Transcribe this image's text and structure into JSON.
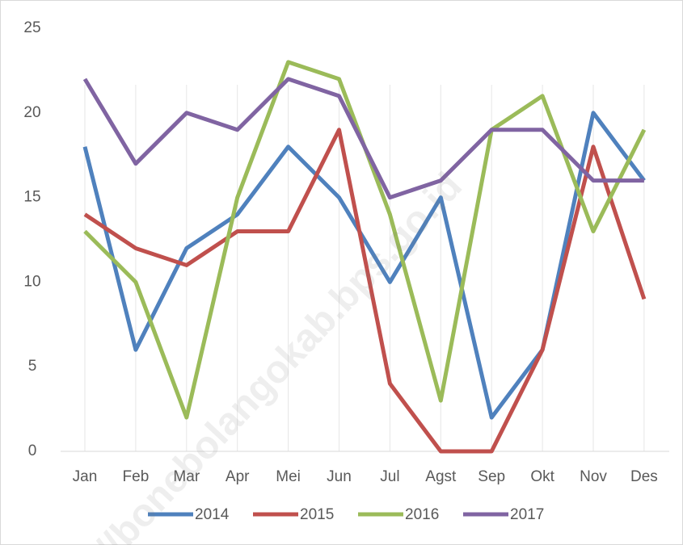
{
  "chart_data": {
    "type": "line",
    "categories": [
      "Jan",
      "Feb",
      "Mar",
      "Apr",
      "Mei",
      "Jun",
      "Jul",
      "Agst",
      "Sep",
      "Okt",
      "Nov",
      "Des"
    ],
    "series": [
      {
        "name": "2014",
        "color": "#4f81bd",
        "values": [
          18,
          6,
          12,
          14,
          18,
          15,
          10,
          15,
          2,
          6,
          20,
          16
        ]
      },
      {
        "name": "2015",
        "color": "#c0504d",
        "values": [
          14,
          12,
          11,
          13,
          13,
          19,
          4,
          0,
          0,
          6,
          18,
          9
        ]
      },
      {
        "name": "2016",
        "color": "#9bbb59",
        "values": [
          13,
          10,
          2,
          15,
          23,
          22,
          14,
          3,
          19,
          21,
          13,
          19
        ]
      },
      {
        "name": "2017",
        "color": "#8064a2",
        "values": [
          22,
          17,
          20,
          19,
          22,
          21,
          15,
          16,
          19,
          19,
          16,
          16
        ]
      }
    ],
    "ylim": [
      0,
      25
    ],
    "yticks": [
      0,
      5,
      10,
      15,
      20,
      25
    ],
    "grid": "x",
    "legend": "bottom",
    "watermark": "//bonebolangokab.bps.go.id"
  }
}
